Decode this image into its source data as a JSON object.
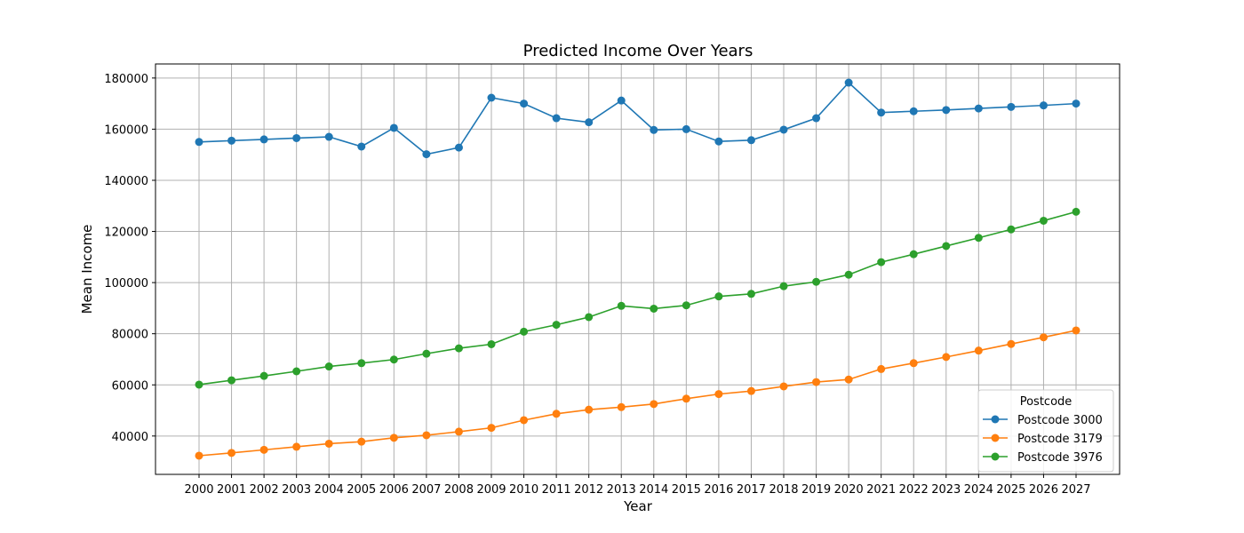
{
  "chart_data": {
    "type": "line",
    "title": "Predicted Income Over Years",
    "xlabel": "Year",
    "ylabel": "Mean Income",
    "x": [
      "2000",
      "2001",
      "2002",
      "2003",
      "2004",
      "2005",
      "2006",
      "2007",
      "2008",
      "2009",
      "2010",
      "2011",
      "2012",
      "2013",
      "2014",
      "2015",
      "2016",
      "2017",
      "2018",
      "2019",
      "2020",
      "2021",
      "2022",
      "2023",
      "2024",
      "2025",
      "2026",
      "2027"
    ],
    "yticks": [
      40000,
      60000,
      80000,
      100000,
      120000,
      140000,
      160000,
      180000
    ],
    "ylim": [
      25000,
      185500
    ],
    "grid": true,
    "legend": {
      "title": "Postcode",
      "placement": "lower-right"
    },
    "series": [
      {
        "name": "Postcode 3000",
        "color": "#1f77b4",
        "values": [
          155000,
          155500,
          156000,
          156500,
          157000,
          153200,
          160500,
          150200,
          152800,
          172300,
          170000,
          164300,
          162700,
          171200,
          159700,
          160000,
          155200,
          155700,
          159800,
          164300,
          178200,
          166500,
          167000,
          167500,
          168100,
          168700,
          169300,
          170000
        ]
      },
      {
        "name": "Postcode 3179",
        "color": "#ff7f0e",
        "values": [
          32300,
          33400,
          34600,
          35800,
          37000,
          37800,
          39300,
          40300,
          41700,
          43200,
          46200,
          48700,
          50300,
          51300,
          52500,
          54600,
          56400,
          57600,
          59400,
          61100,
          62100,
          66200,
          68500,
          70900,
          73400,
          76000,
          78600,
          81300
        ]
      },
      {
        "name": "Postcode 3976",
        "color": "#2ca02c",
        "values": [
          60100,
          61800,
          63500,
          65300,
          67200,
          68500,
          69900,
          72200,
          74300,
          75900,
          80800,
          83500,
          86500,
          90900,
          89800,
          91100,
          94600,
          95600,
          98600,
          100300,
          103100,
          108000,
          111100,
          114300,
          117500,
          120800,
          124200,
          127700
        ]
      }
    ]
  }
}
